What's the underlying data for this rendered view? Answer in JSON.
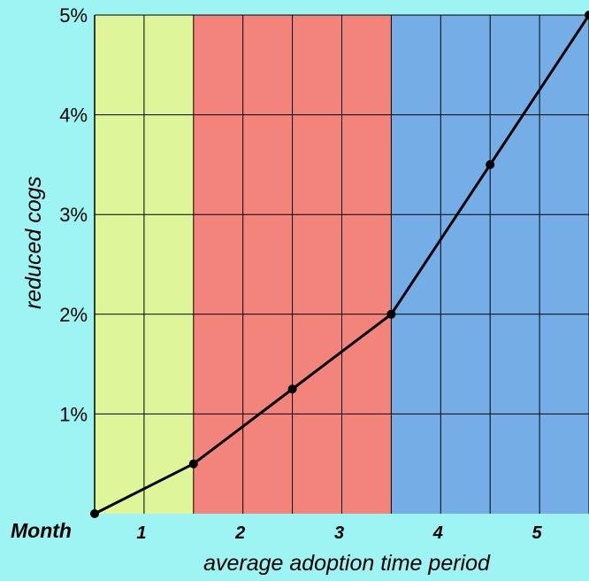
{
  "chart_data": {
    "type": "line",
    "title": "",
    "xlabel": "average adoption time period",
    "ylabel": "reduced cogs",
    "x_prefix_label": "Month",
    "x": [
      0.5,
      1.5,
      2.5,
      3.5,
      4.5,
      5.5
    ],
    "y": [
      0.0,
      0.5,
      1.25,
      2.0,
      3.5,
      5.0
    ],
    "xlim": [
      0.5,
      5.5
    ],
    "ylim": [
      0,
      5
    ],
    "x_ticks": [
      {
        "value": 1,
        "label": "1"
      },
      {
        "value": 2,
        "label": "2"
      },
      {
        "value": 3,
        "label": "3"
      },
      {
        "value": 4,
        "label": "4"
      },
      {
        "value": 5,
        "label": "5"
      }
    ],
    "y_ticks": [
      {
        "value": 1,
        "label": "1%"
      },
      {
        "value": 2,
        "label": "2%"
      },
      {
        "value": 3,
        "label": "3%"
      },
      {
        "value": 4,
        "label": "4%"
      },
      {
        "value": 5,
        "label": "5%"
      }
    ],
    "bands": [
      {
        "from": 0.5,
        "to": 1.5,
        "color": "#dff59a"
      },
      {
        "from": 1.5,
        "to": 3.5,
        "color": "#f2847c"
      },
      {
        "from": 3.5,
        "to": 5.5,
        "color": "#75ade6"
      }
    ],
    "grid": true,
    "line_color": "#000000",
    "background_color": "#9ef3f3"
  }
}
